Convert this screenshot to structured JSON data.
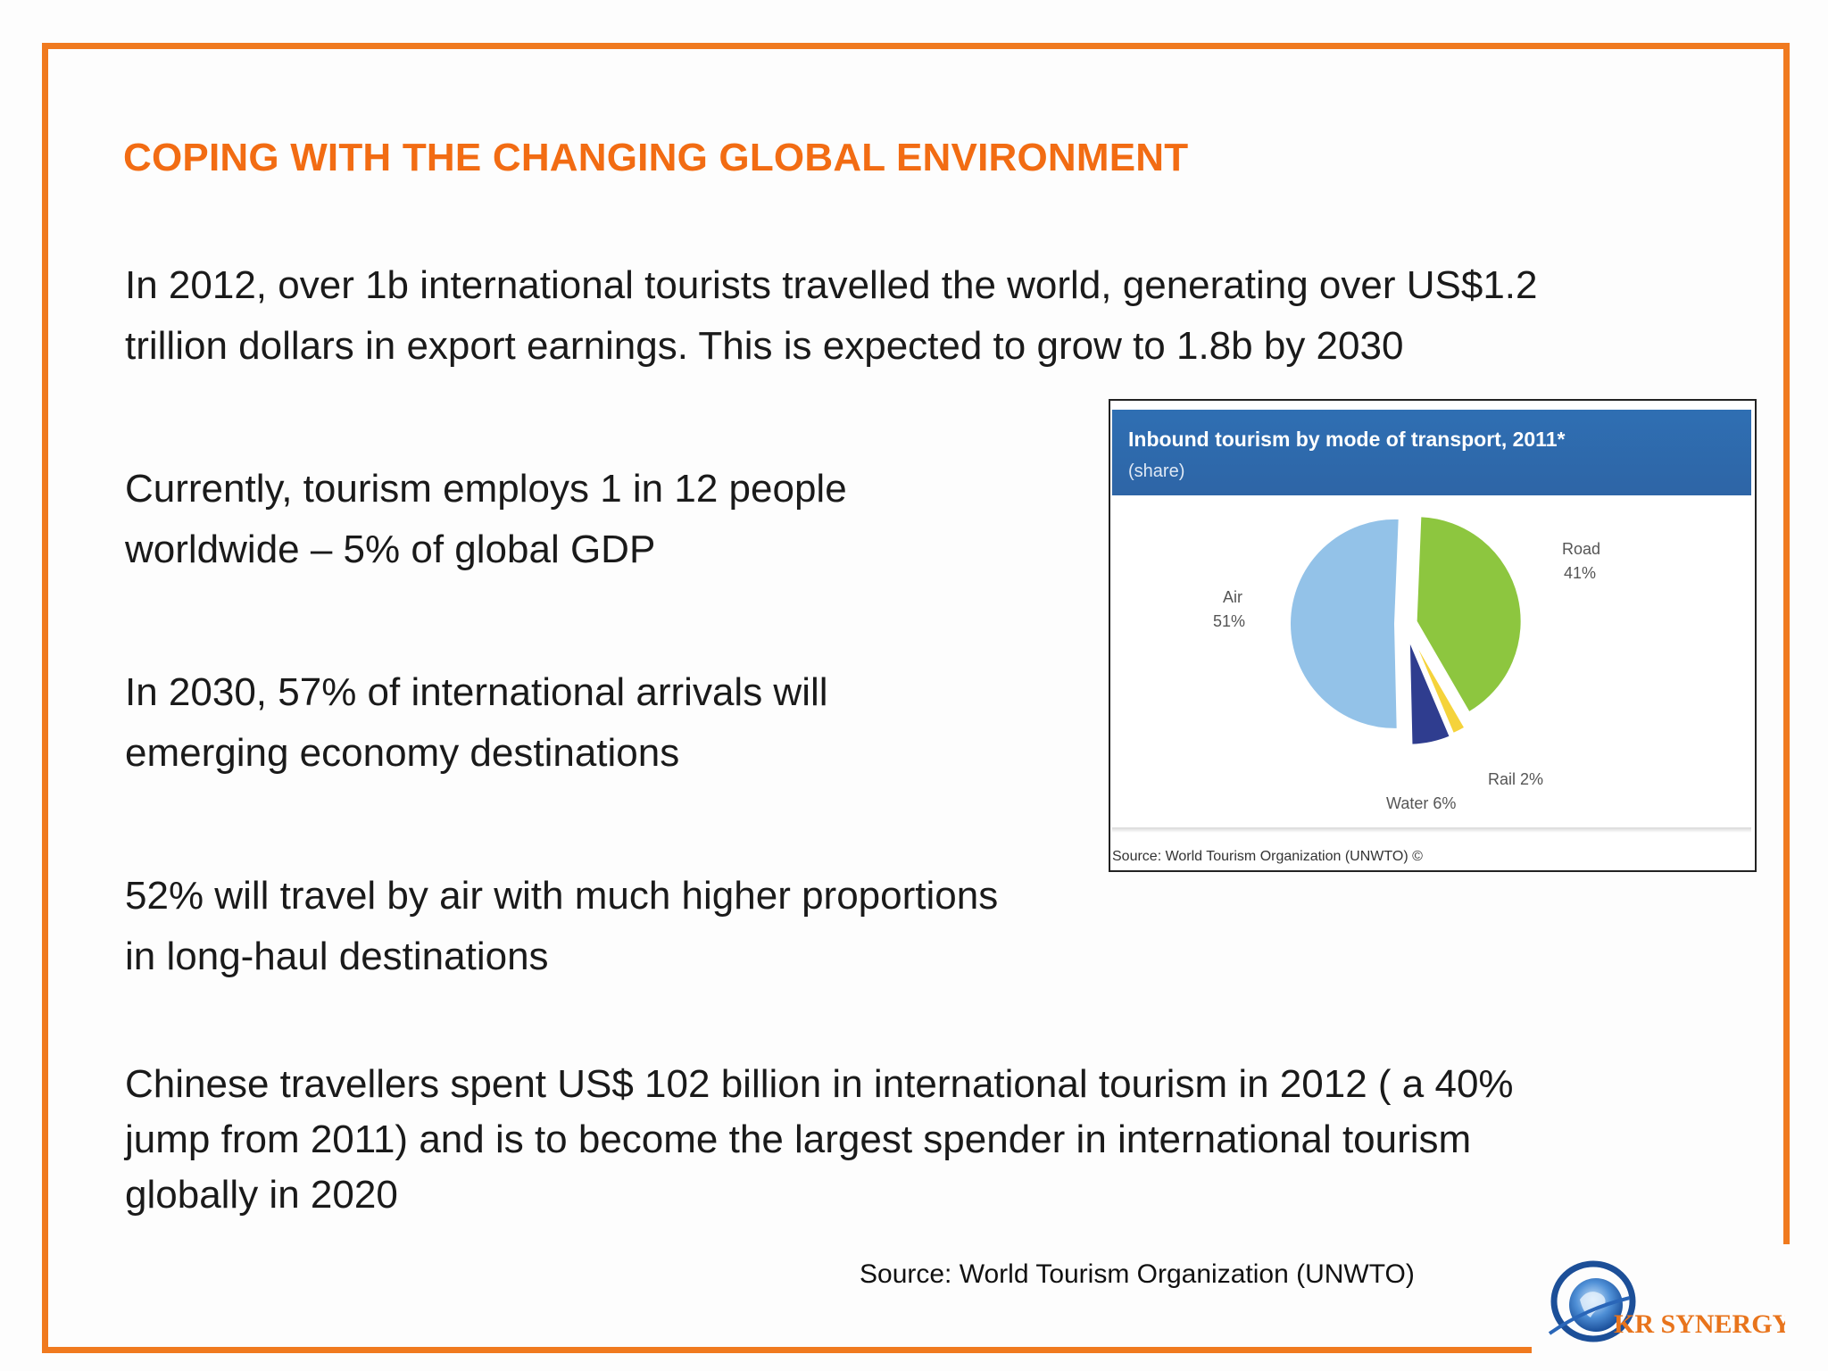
{
  "slide": {
    "title": "COPING WITH THE CHANGING GLOBAL ENVIRONMENT",
    "accent_color": "#f26c13",
    "frame_color": "#f07a1f"
  },
  "paragraphs": [
    {
      "lines": [
        "In 2012, over 1b international tourists travelled the world, generating over  US$1.2",
        "trillion dollars in export earnings. This is expected to grow to 1.8b by 2030"
      ]
    },
    {
      "lines": [
        "Currently, tourism employs 1 in 12 people",
        "worldwide – 5% of global GDP"
      ]
    },
    {
      "lines": [
        "In 2030, 57% of international arrivals will",
        "emerging economy destinations"
      ]
    },
    {
      "lines": [
        "52% will travel by air with  much higher proportions",
        "in long-haul destinations"
      ]
    },
    {
      "lines": [
        "Chinese travellers spent US$ 102 billion in international tourism in 2012 ( a 40%",
        "jump from 2011) and is  to become the largest spender in international tourism",
        "globally in 2020"
      ]
    }
  ],
  "chart_data": {
    "type": "pie",
    "title": "Inbound tourism by mode of transport, 2011*",
    "subtitle": "(share)",
    "source": "Source: World Tourism Organization (UNWTO) ©",
    "slices": [
      {
        "name": "Road",
        "value": 41,
        "label": "41%",
        "color": "#8dc63f"
      },
      {
        "name": "Rail",
        "value": 2,
        "label": "Rail 2%",
        "color": "#f5d33b"
      },
      {
        "name": "Water",
        "value": 6,
        "label": "Water 6%",
        "color": "#2f3d8f"
      },
      {
        "name": "Air",
        "value": 51,
        "label": "51%",
        "color": "#93c2e8"
      }
    ]
  },
  "footer": {
    "source": "Source: World Tourism Organization (UNWTO)",
    "logo_text": "KR SYNERGY"
  }
}
